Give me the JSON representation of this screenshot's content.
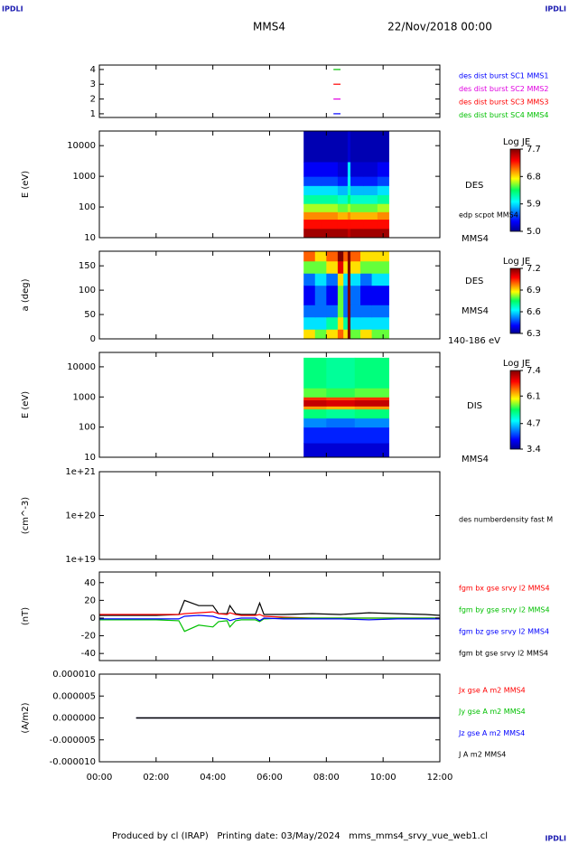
{
  "header": {
    "logos": [
      "IPDLI",
      "IPDLI",
      "IPDLI"
    ],
    "spacecraft": "MMS4",
    "date": "22/Nov/2018 00:00"
  },
  "footer": "Produced by cl (IRAP)   Printing date: 03/May/2024   mms_mms4_srvy_vue_web1.cl",
  "chart_data": [
    {
      "type": "line",
      "xlim": [
        0,
        12
      ],
      "ylim": [
        0.75,
        4.3
      ],
      "yticks": [
        1,
        2,
        3,
        4
      ],
      "series": [
        {
          "name": "des dist burst SC1 MMS1",
          "color": "#0000ff",
          "x": [
            8.25,
            8.5
          ],
          "values": [
            1,
            1
          ]
        },
        {
          "name": "des dist burst SC2 MMS2",
          "color": "#e000e0",
          "x": [
            8.25,
            8.5
          ],
          "values": [
            2,
            2
          ]
        },
        {
          "name": "des dist burst SC3 MMS3",
          "color": "#ff0000",
          "x": [
            8.25,
            8.5
          ],
          "values": [
            3,
            3
          ]
        },
        {
          "name": "des dist burst SC4 MMS4",
          "color": "#00c000",
          "x": [
            8.25,
            8.5
          ],
          "values": [
            4,
            4
          ]
        }
      ]
    },
    {
      "type": "heatmap",
      "ylabel": "E (eV)",
      "log": true,
      "xlim": [
        0,
        12
      ],
      "ylim": [
        10,
        30000
      ],
      "yticks": [
        10,
        100,
        1000,
        10000
      ],
      "labels": [
        "DES",
        "edp scpot MMS4",
        "MMS4"
      ],
      "clabel": "Log JE",
      "clim": [
        5,
        7.7
      ],
      "cticks": [
        {
          "value": 5,
          "label": "5.0"
        },
        5.9,
        6.8,
        7.7
      ],
      "x": [
        7.2,
        7.8,
        8.4,
        8.75,
        8.85,
        9.3,
        9.8,
        10.2
      ],
      "y": [
        10,
        20,
        40,
        70,
        130,
        250,
        500,
        1000,
        3000,
        30000
      ],
      "values": [
        [
          7.6,
          7.6,
          7.6,
          7.5,
          7.6,
          7.6,
          7.6
        ],
        [
          7.3,
          7.3,
          7.3,
          7.3,
          7.3,
          7.3,
          7.3
        ],
        [
          7.0,
          7.0,
          6.9,
          7.0,
          6.9,
          6.9,
          7.0
        ],
        [
          6.6,
          6.6,
          6.5,
          6.6,
          6.5,
          6.5,
          6.6
        ],
        [
          6.2,
          6.2,
          6.1,
          6.3,
          6.1,
          6.1,
          6.2
        ],
        [
          5.9,
          5.9,
          5.8,
          6.1,
          5.8,
          5.8,
          5.9
        ],
        [
          5.5,
          5.5,
          5.4,
          6.0,
          5.4,
          5.4,
          5.5
        ],
        [
          5.3,
          5.3,
          5.2,
          5.9,
          5.2,
          5.2,
          5.3
        ],
        [
          5.1,
          5.1,
          5.1,
          5.2,
          5.1,
          5.1,
          5.1
        ]
      ]
    },
    {
      "type": "heatmap",
      "ylabel": "a (deg)",
      "xlim": [
        0,
        12
      ],
      "ylim": [
        0,
        180
      ],
      "yticks": [
        0,
        50,
        100,
        150
      ],
      "labels": [
        "DES",
        "MMS4",
        "140-186 eV"
      ],
      "clabel": "Log JE",
      "clim": [
        6.3,
        7.2
      ],
      "cticks": [
        6.3,
        6.6,
        6.9,
        7.2
      ],
      "x": [
        7.2,
        7.6,
        8.0,
        8.4,
        8.6,
        8.75,
        8.85,
        9.2,
        9.6,
        10.2
      ],
      "y": [
        0,
        20,
        45,
        70,
        110,
        135,
        160,
        180
      ],
      "values": [
        [
          6.9,
          6.8,
          6.9,
          7.0,
          6.9,
          7.2,
          6.8,
          6.9,
          6.8
        ],
        [
          6.6,
          6.6,
          6.7,
          6.9,
          6.7,
          7.2,
          6.6,
          6.6,
          6.6
        ],
        [
          6.5,
          6.5,
          6.5,
          6.8,
          6.5,
          7.2,
          6.5,
          6.5,
          6.5
        ],
        [
          6.4,
          6.5,
          6.4,
          6.8,
          6.5,
          7.2,
          6.5,
          6.4,
          6.4
        ],
        [
          6.5,
          6.6,
          6.5,
          6.9,
          6.6,
          7.2,
          6.6,
          6.5,
          6.6
        ],
        [
          6.8,
          6.8,
          6.9,
          7.1,
          6.9,
          7.2,
          6.9,
          6.8,
          6.8
        ],
        [
          7.0,
          6.9,
          7.0,
          7.2,
          7.0,
          7.2,
          7.0,
          6.9,
          6.9
        ]
      ]
    },
    {
      "type": "heatmap",
      "ylabel": "E (eV)",
      "log": true,
      "xlim": [
        0,
        12
      ],
      "ylim": [
        10,
        30000
      ],
      "yticks": [
        10,
        100,
        1000,
        10000
      ],
      "labels": [
        "DIS",
        "MMS4"
      ],
      "clabel": "Log JE",
      "clim": [
        3.4,
        7.4
      ],
      "cticks": [
        3.4,
        4.7,
        6.1,
        7.4
      ],
      "x": [
        7.2,
        8.0,
        9.0,
        10.2
      ],
      "y": [
        10,
        30,
        100,
        200,
        400,
        500,
        800,
        1000,
        2000,
        20000
      ],
      "values": [
        [
          3.7,
          3.7,
          3.7
        ],
        [
          4.0,
          4.0,
          4.0
        ],
        [
          4.4,
          4.3,
          4.4
        ],
        [
          5.3,
          5.2,
          5.3
        ],
        [
          6.3,
          6.2,
          6.3
        ],
        [
          7.1,
          7.0,
          7.1
        ],
        [
          6.7,
          6.6,
          6.7
        ],
        [
          5.6,
          5.5,
          5.6
        ],
        [
          5.3,
          5.2,
          5.3
        ]
      ]
    },
    {
      "type": "line",
      "ylabel": "(cm^-3)",
      "log": true,
      "xlim": [
        0,
        12
      ],
      "ylim": [
        1e+19,
        1e+21
      ],
      "yticks": [
        {
          "value": 1e+19,
          "label": "1e+19"
        },
        {
          "value": 1e+20,
          "label": "1e+20"
        },
        {
          "value": 1e+21,
          "label": "1e+21"
        }
      ],
      "labels": [
        "des numberdensity fast M"
      ],
      "series": []
    },
    {
      "type": "line",
      "ylabel": "(nT)",
      "xlim": [
        0,
        12
      ],
      "ylim": [
        -48,
        52
      ],
      "yticks": [
        -40,
        -20,
        0,
        20,
        40
      ],
      "x": [
        0,
        1,
        2,
        2.8,
        3.0,
        3.5,
        4.0,
        4.2,
        4.5,
        4.6,
        4.8,
        5.0,
        5.5,
        5.65,
        5.8,
        6.5,
        7.5,
        8.5,
        9.5,
        10.5,
        11.5,
        12
      ],
      "series": [
        {
          "name": "fgm bt gse srvy l2 MMS4",
          "color": "#000000",
          "values": [
            3,
            3,
            3,
            4,
            20,
            14,
            14,
            5,
            5,
            14,
            5,
            4,
            4,
            17,
            4,
            4,
            5,
            4,
            6,
            5,
            4,
            3
          ]
        },
        {
          "name": "fgm bx gse srvy l2 MMS4",
          "color": "#ff0000",
          "values": [
            4,
            4,
            4,
            4,
            5,
            6,
            7,
            5,
            4,
            6,
            4,
            3,
            3,
            4,
            2,
            1,
            0,
            0,
            0,
            0,
            0,
            0
          ]
        },
        {
          "name": "fgm by gse srvy l2 MMS4",
          "color": "#00c000",
          "values": [
            -2,
            -2,
            -2,
            -3,
            -15,
            -8,
            -10,
            -4,
            -3,
            -10,
            -3,
            -2,
            -2,
            -4,
            -1,
            0,
            0,
            0,
            0,
            0,
            0,
            0
          ]
        },
        {
          "name": "fgm bz gse srvy l2 MMS4",
          "color": "#0000ff",
          "values": [
            -1,
            -1,
            -1,
            -1,
            2,
            3,
            2,
            0,
            -1,
            -3,
            -1,
            0,
            0,
            -3,
            0,
            -1,
            -1,
            -1,
            -2,
            -1,
            -1,
            -1
          ]
        }
      ]
    },
    {
      "type": "line",
      "ylabel": "(A/m2)",
      "xlim": [
        0,
        12
      ],
      "ylim": [
        -1e-05,
        1e-05
      ],
      "yticks": [
        {
          "value": -1e-05,
          "label": "-0.000010"
        },
        {
          "value": -5e-06,
          "label": "-0.000005"
        },
        {
          "value": 0,
          "label": "0.000000"
        },
        {
          "value": 5e-06,
          "label": "0.000005"
        },
        {
          "value": 1e-05,
          "label": "0.000010"
        }
      ],
      "xticks": [
        {
          "value": 0,
          "label": "00:00"
        },
        {
          "value": 2,
          "label": "02:00"
        },
        {
          "value": 4,
          "label": "04:00"
        },
        {
          "value": 6,
          "label": "06:00"
        },
        {
          "value": 8,
          "label": "08:00"
        },
        {
          "value": 10,
          "label": "10:00"
        },
        {
          "value": 12,
          "label": "12:00"
        }
      ],
      "x": [
        1.3,
        3,
        4,
        5.6,
        8,
        12
      ],
      "series": [
        {
          "name": "Jx gse A m2 MMS4",
          "color": "#ff0000",
          "values": [
            0,
            0,
            0,
            0,
            0,
            0
          ]
        },
        {
          "name": "Jy gse A m2 MMS4",
          "color": "#00c000",
          "values": [
            0,
            0,
            0,
            0,
            0,
            0
          ]
        },
        {
          "name": "Jz gse A m2 MMS4",
          "color": "#0000ff",
          "values": [
            0,
            0,
            0,
            0,
            0,
            0
          ]
        },
        {
          "name": "J A m2 MMS4",
          "color": "#000000",
          "values": [
            0,
            0,
            0,
            0,
            0,
            0
          ]
        }
      ]
    }
  ]
}
